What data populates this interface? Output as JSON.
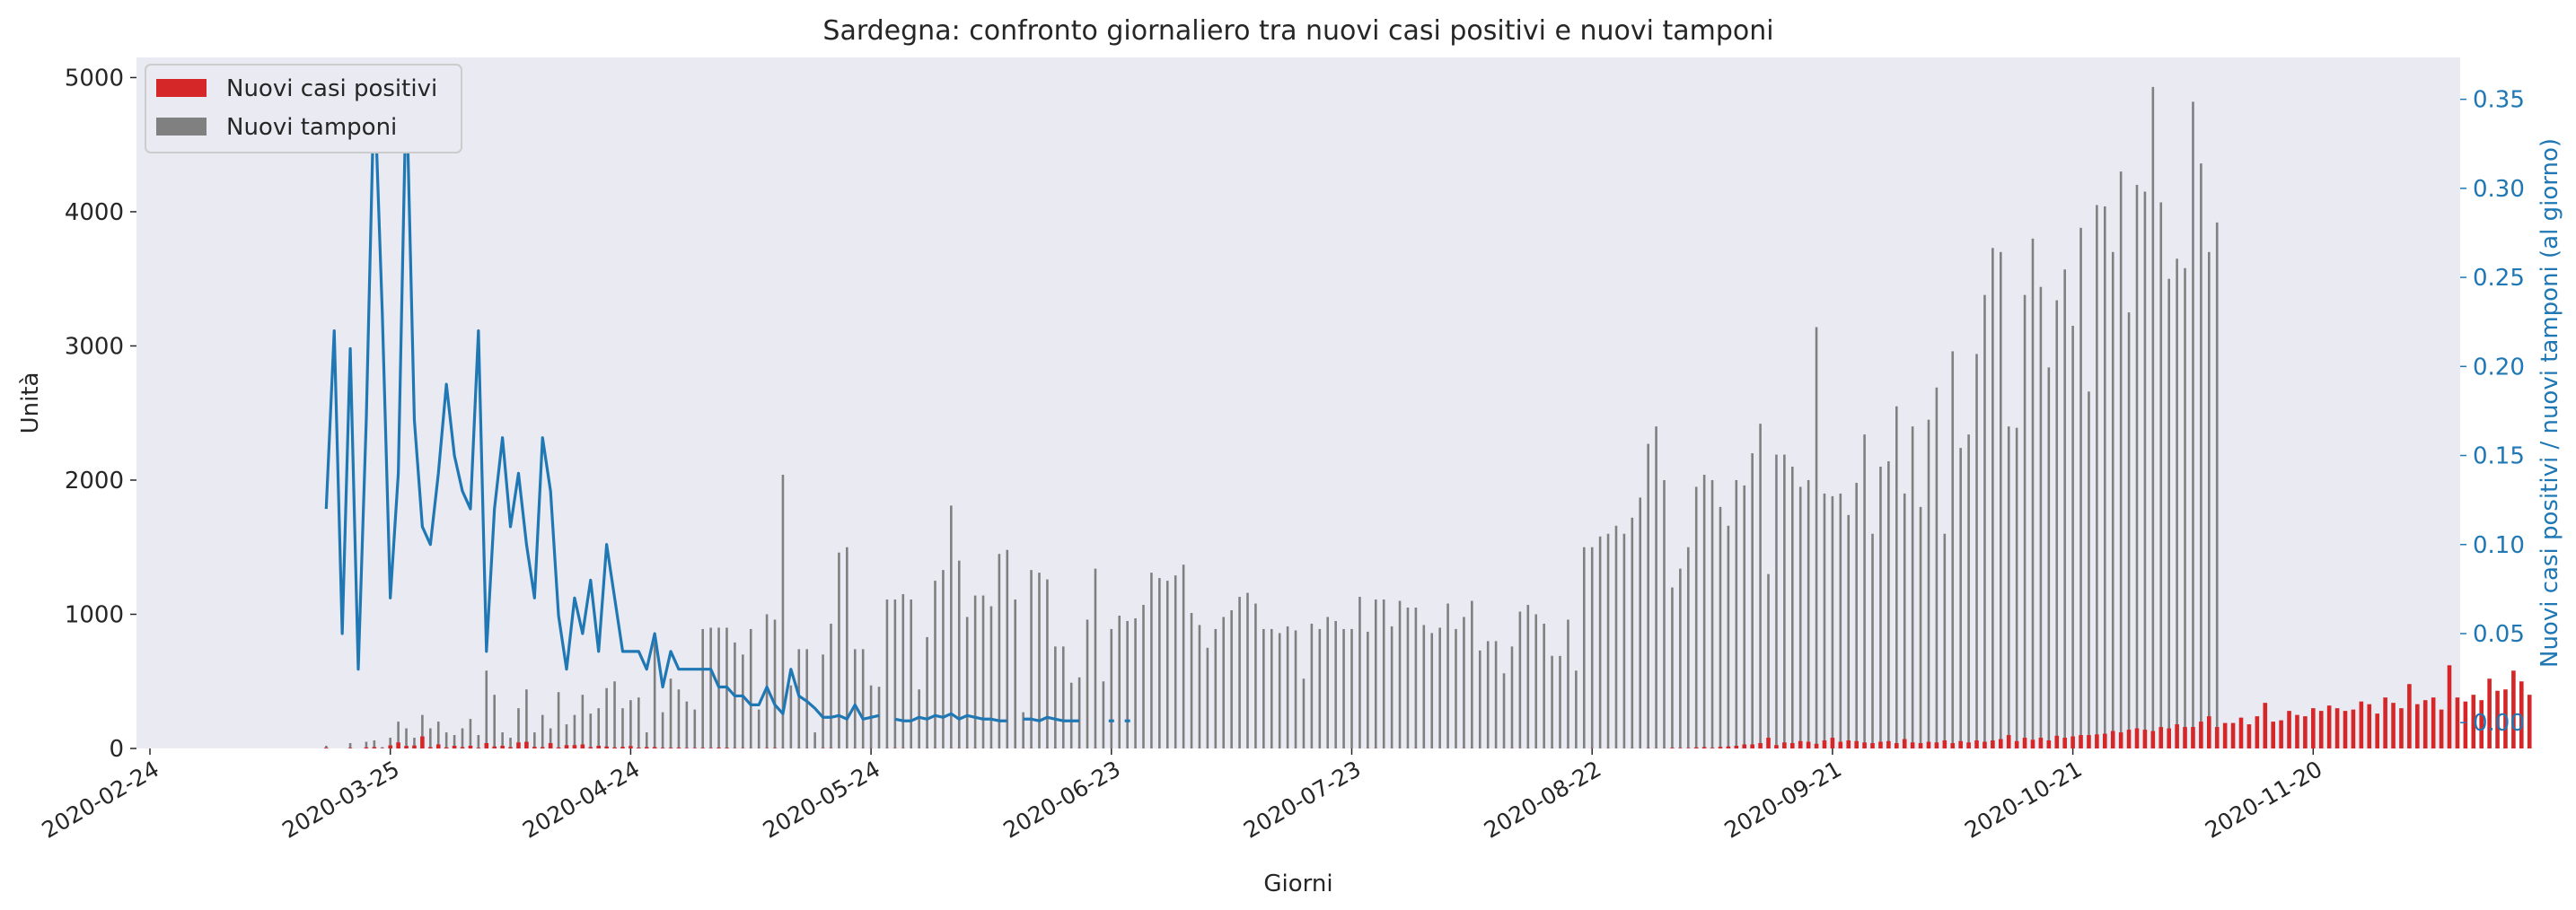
{
  "chart_data": {
    "type": "bar",
    "title": "Sardegna: confronto giornaliero tra nuovi casi positivi e nuovi tamponi",
    "xlabel": "Giorni",
    "ylabel": "Unità",
    "y2label": "Nuovi casi positivi / nuovi tamponi (al giorno)",
    "x_start": "2020-02-24",
    "x_end": "2020-11-24",
    "x_ticks": [
      "2020-02-24",
      "2020-03-25",
      "2020-04-24",
      "2020-05-24",
      "2020-06-23",
      "2020-07-23",
      "2020-08-22",
      "2020-09-21",
      "2020-10-21",
      "2020-11-20"
    ],
    "ylim": [
      0,
      5150
    ],
    "y_ticks": [
      0,
      1000,
      2000,
      3000,
      4000,
      5000
    ],
    "y2lim": [
      -0.0145,
      0.3735
    ],
    "y2_ticks": [
      0.0,
      0.05,
      0.1,
      0.15,
      0.2,
      0.25,
      0.3,
      0.35
    ],
    "y2_tick_labels": [
      "0.00",
      "0.05",
      "0.10",
      "0.15",
      "0.20",
      "0.25",
      "0.30",
      "0.35"
    ],
    "grid": false,
    "legend_position": "top-left",
    "colors": {
      "positivi": "#d62728",
      "tamponi": "#808080",
      "ratio": "#1f77b4",
      "plot_background": "#eaeaf2"
    },
    "series": [
      {
        "name": "Nuovi casi positivi",
        "kind": "bar",
        "color": "#d62728",
        "values": [
          0,
          0,
          0,
          0,
          0,
          0,
          0,
          0,
          0,
          0,
          0,
          0,
          0,
          0,
          0,
          0,
          0,
          0,
          0,
          0,
          0,
          0,
          5,
          0,
          0,
          4,
          0,
          8,
          10,
          2,
          23,
          45,
          19,
          22,
          90,
          10,
          30,
          8,
          20,
          10,
          20,
          5,
          40,
          15,
          20,
          10,
          45,
          50,
          12,
          10,
          40,
          8,
          25,
          25,
          30,
          10,
          20,
          15,
          8,
          12,
          18,
          6,
          10,
          10,
          5,
          5,
          6,
          3,
          3,
          4,
          3,
          6,
          5,
          2,
          2,
          1,
          1,
          2,
          3,
          1,
          0,
          1,
          1,
          0,
          2,
          2,
          0,
          0,
          1,
          1,
          1,
          0,
          1,
          2,
          1,
          0,
          0,
          1,
          1,
          0,
          1,
          1,
          1,
          1,
          0,
          1,
          0,
          0,
          0,
          1,
          1,
          0,
          1,
          1,
          0,
          0,
          1,
          0,
          1,
          0,
          0,
          0,
          0,
          0,
          0,
          0,
          0,
          0,
          0,
          0,
          0,
          0,
          0,
          0,
          0,
          0,
          0,
          0,
          0,
          0,
          0,
          0,
          0,
          0,
          0,
          0,
          0,
          0,
          0,
          0,
          0,
          0,
          1,
          1,
          0,
          0,
          0,
          0,
          1,
          0,
          0,
          0,
          0,
          0,
          1,
          1,
          0,
          0,
          0,
          0,
          1,
          0,
          1,
          0,
          0,
          1,
          0,
          1,
          0,
          0,
          1,
          0,
          1,
          0,
          0,
          1,
          0,
          2,
          1,
          1,
          5,
          3,
          3,
          8,
          10,
          5,
          12,
          15,
          20,
          30,
          30,
          40,
          80,
          25,
          45,
          40,
          55,
          50,
          35,
          60,
          80,
          50,
          60,
          55,
          45,
          40,
          50,
          55,
          40,
          70,
          45,
          40,
          50,
          45,
          60,
          40,
          55,
          45,
          60,
          50,
          60,
          70,
          100,
          55,
          80,
          65,
          80,
          60,
          95,
          80,
          90,
          100,
          100,
          105,
          110,
          130,
          120,
          140,
          150,
          140,
          130,
          160,
          150,
          180,
          160,
          160,
          200,
          240,
          160,
          190,
          190,
          230,
          180,
          240,
          340,
          200,
          210,
          280,
          250,
          240,
          300,
          280,
          320,
          300,
          280,
          290,
          350,
          330,
          260,
          380,
          340,
          300,
          480,
          330,
          360,
          380,
          290,
          620,
          380,
          350,
          400,
          360,
          520,
          430,
          440,
          580,
          500,
          400
        ]
      },
      {
        "name": "Nuovi tamponi",
        "kind": "bar",
        "color": "#808080",
        "values": [
          0,
          0,
          0,
          0,
          0,
          0,
          0,
          0,
          0,
          0,
          0,
          0,
          0,
          0,
          0,
          0,
          0,
          0,
          0,
          0,
          0,
          0,
          20,
          0,
          0,
          40,
          0,
          50,
          60,
          10,
          80,
          200,
          150,
          80,
          250,
          150,
          200,
          120,
          100,
          150,
          220,
          100,
          580,
          400,
          120,
          80,
          300,
          440,
          120,
          250,
          150,
          420,
          180,
          250,
          400,
          260,
          300,
          450,
          500,
          300,
          360,
          380,
          120,
          790,
          270,
          520,
          440,
          350,
          290,
          890,
          900,
          900,
          900,
          790,
          700,
          890,
          290,
          1000,
          960,
          2040,
          470,
          740,
          740,
          120,
          700,
          930,
          1460,
          1500,
          740,
          740,
          470,
          460,
          1110,
          1110,
          1150,
          1110,
          440,
          830,
          1250,
          1330,
          1810,
          1400,
          980,
          1140,
          1140,
          1060,
          1450,
          1480,
          1110,
          270,
          1330,
          1310,
          1260,
          760,
          760,
          490,
          530,
          960,
          1340,
          500,
          890,
          990,
          950,
          970,
          1070,
          1310,
          1270,
          1250,
          1290,
          1370,
          1010,
          920,
          750,
          890,
          980,
          1030,
          1130,
          1160,
          1080,
          890,
          890,
          860,
          910,
          880,
          520,
          930,
          890,
          980,
          950,
          890,
          890,
          1130,
          870,
          1110,
          1110,
          910,
          1100,
          1050,
          1050,
          920,
          860,
          900,
          1080,
          890,
          980,
          1100,
          730,
          800,
          800,
          560,
          760,
          1020,
          1070,
          1000,
          930,
          690,
          690,
          960,
          580,
          1500,
          1500,
          1580,
          1600,
          1660,
          1600,
          1720,
          1870,
          2270,
          2400,
          2000,
          1200,
          1340,
          1500,
          1950,
          2040,
          2000,
          1800,
          1660,
          2000,
          1960,
          2200,
          2420,
          1300,
          2190,
          2190,
          2100,
          1950,
          2000,
          3140,
          1900,
          1880,
          1900,
          1740,
          1980,
          2340,
          1600,
          2100,
          2140,
          2550,
          1900,
          2400,
          1800,
          2450,
          2690,
          1600,
          2960,
          2240,
          2340,
          2940,
          3380,
          3730,
          3700,
          2400,
          2390,
          3380,
          3800,
          3440,
          2840,
          3340,
          3570,
          3150,
          3880,
          2660,
          4050,
          4040,
          3700,
          4300,
          3250,
          4200,
          4150,
          4930,
          4070,
          3500,
          3650,
          3580,
          4820,
          4360,
          3700,
          3920
        ]
      },
      {
        "name": "Nuovi casi positivi / nuovi tamponi",
        "kind": "line",
        "axis": "right",
        "color": "#1f77b4",
        "values": [
          null,
          null,
          null,
          null,
          null,
          null,
          null,
          null,
          null,
          null,
          null,
          null,
          null,
          null,
          null,
          null,
          null,
          null,
          null,
          null,
          null,
          null,
          0.12,
          0.22,
          0.05,
          0.21,
          0.03,
          0.17,
          0.36,
          0.23,
          0.07,
          0.14,
          0.36,
          0.17,
          0.11,
          0.1,
          0.14,
          0.19,
          0.15,
          0.13,
          0.12,
          0.22,
          0.04,
          0.12,
          0.16,
          0.11,
          0.14,
          0.1,
          0.07,
          0.16,
          0.13,
          0.06,
          0.03,
          0.07,
          0.05,
          0.08,
          0.04,
          0.1,
          0.07,
          0.04,
          0.04,
          0.04,
          0.03,
          0.05,
          0.02,
          0.04,
          0.03,
          0.03,
          0.03,
          0.03,
          0.03,
          0.02,
          0.02,
          0.015,
          0.015,
          0.01,
          0.01,
          0.02,
          0.01,
          0.005,
          0.03,
          0.015,
          0.012,
          0.008,
          0.003,
          0.003,
          0.004,
          0.002,
          0.01,
          0.002,
          0.003,
          0.004,
          null,
          0.002,
          0.001,
          0.001,
          0.003,
          0.002,
          0.004,
          0.003,
          0.005,
          0.002,
          0.004,
          0.003,
          0.002,
          0.002,
          0.001,
          0.001,
          null,
          0.002,
          0.002,
          0.001,
          0.003,
          0.002,
          0.001,
          0.001,
          0.001,
          null,
          null,
          null,
          0.001,
          null,
          0.001,
          null,
          null,
          null,
          null,
          null,
          null,
          null,
          null,
          null,
          null,
          null,
          null,
          null,
          null,
          null,
          null,
          null,
          null,
          null,
          null,
          null,
          null,
          null,
          null,
          null,
          null,
          null,
          null,
          null,
          null,
          null,
          null,
          null,
          null,
          null,
          null,
          null,
          null,
          null,
          null,
          null,
          null,
          null,
          null,
          null,
          null,
          null,
          null,
          null,
          null,
          null,
          null,
          null,
          null,
          null,
          null,
          null,
          null,
          null,
          null,
          null,
          null,
          null,
          null,
          null,
          null,
          null,
          null,
          null,
          null,
          null,
          null,
          null,
          null,
          null,
          null,
          null,
          null,
          null,
          null,
          null,
          null,
          null,
          null,
          null,
          null,
          null,
          null,
          null,
          null,
          null,
          null,
          null,
          null,
          null,
          null,
          null,
          null,
          null,
          null,
          null,
          null,
          null,
          null,
          null,
          null,
          null,
          null,
          null,
          null,
          null,
          null,
          null,
          null,
          null,
          null,
          null,
          null,
          null,
          null,
          null,
          null,
          null,
          null,
          null,
          null,
          null,
          null,
          null,
          null,
          null,
          null,
          null,
          null,
          null,
          null,
          null,
          null,
          null,
          null,
          null,
          null,
          null,
          null,
          null,
          null,
          null,
          null,
          null,
          null,
          null,
          null,
          null,
          null,
          null,
          null,
          null,
          null,
          null,
          null,
          null,
          null,
          null,
          null,
          null,
          null,
          null,
          null,
          null,
          null,
          null,
          null,
          null,
          null,
          null,
          null,
          null,
          null,
          null,
          null,
          null,
          null,
          null,
          null,
          null,
          null,
          null,
          null,
          null,
          null,
          null,
          null,
          null,
          null,
          null,
          null,
          null,
          null,
          null,
          null,
          null,
          null,
          null,
          null,
          null,
          null,
          null,
          null,
          null
        ]
      }
    ]
  }
}
